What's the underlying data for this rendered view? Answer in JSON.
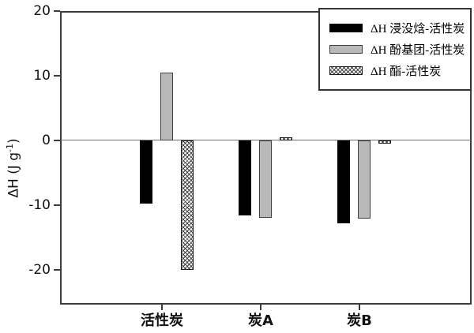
{
  "chart_data": {
    "type": "bar",
    "title": "",
    "ylabel": "ΔH (J g⁻¹)",
    "ylabel_parts": {
      "prefix": "ΔH (J g",
      "sup": "-1",
      "suffix": ")"
    },
    "categories": [
      "活性炭",
      "炭A",
      "炭B"
    ],
    "series": [
      {
        "name": "ΔH 浸没焓-活性炭",
        "color": "#000000",
        "pattern": "solid-black",
        "values": [
          -9.8,
          -11.6,
          -12.8
        ]
      },
      {
        "name": "ΔH 酚基团-活性炭",
        "color": "#b9b9b9",
        "pattern": "solid-gray",
        "values": [
          10.5,
          -12.0,
          -12.1
        ]
      },
      {
        "name": "ΔH 酯-活性炭",
        "color": "#ffffff",
        "pattern": "crosshatch",
        "values": [
          -20.0,
          0.5,
          -0.5
        ]
      }
    ],
    "yticks": [
      20,
      10,
      0,
      -10,
      -20
    ],
    "ylim": [
      -25.4,
      20
    ],
    "zero_baseline": true,
    "grid": false,
    "legend_position": "top-right",
    "axis_color": "#3c3c3c",
    "background_color": "#ffffff"
  }
}
